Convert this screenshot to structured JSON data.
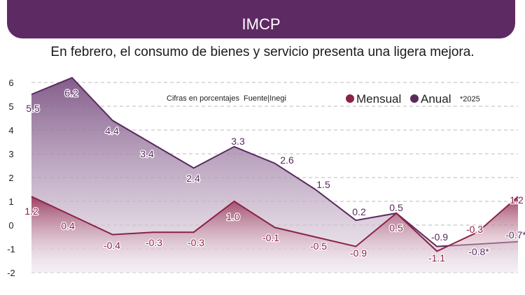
{
  "header": {
    "title": "IMCP",
    "subtitle": "En febrero, el consumo de bienes y servicio presenta una ligera mejora."
  },
  "notes": {
    "units": "Cifras en porcentajes",
    "source": "Fuente|Inegi",
    "footnote": "*2025"
  },
  "colors": {
    "mensual": "#8b2346",
    "anual": "#5a2a5e",
    "banner": "#5e2a63"
  },
  "chart_data": {
    "type": "area",
    "ylim": [
      -2,
      6
    ],
    "yticks": [
      "6",
      "5",
      "4",
      "3",
      "2",
      "1",
      "0",
      "-1",
      "-2"
    ],
    "grid": "dashed horizontal",
    "legend": "top-right",
    "series": [
      {
        "name": "Mensual",
        "values": [
          1.2,
          0.4,
          -0.4,
          -0.3,
          -0.3,
          1.0,
          -0.1,
          -0.5,
          -0.9,
          0.5,
          -1.1,
          -0.3,
          1.2
        ],
        "labels": [
          "1.2",
          "0.4",
          "-0.4",
          "-0.3",
          "-0.3",
          "1.0",
          "-0.1",
          "-0.5",
          "-0.9",
          "0.5",
          "-1.1",
          "-0.3",
          "1.2"
        ]
      },
      {
        "name": "Anual",
        "values": [
          5.5,
          6.2,
          4.4,
          3.4,
          2.4,
          3.3,
          2.6,
          1.5,
          0.2,
          0.5,
          -0.9,
          -0.8,
          -0.7
        ],
        "labels": [
          "5.5",
          "6.2",
          "4.4",
          "3.4",
          "2.4",
          "3.3",
          "2.6",
          "1.5",
          "0.2",
          "0.5",
          "-0.9",
          "-0.8*",
          "-0.7*"
        ]
      }
    ]
  }
}
